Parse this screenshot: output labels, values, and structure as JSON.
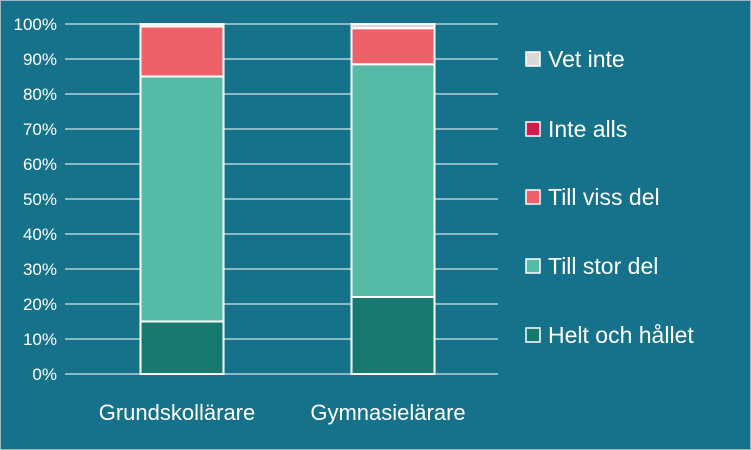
{
  "chart_data": {
    "type": "bar",
    "stacked": true,
    "percent": true,
    "categories": [
      "Grundskollärare",
      "Gymnasielärare"
    ],
    "series": [
      {
        "name": "Helt och hållet",
        "values": [
          15,
          22
        ],
        "color": "#177870"
      },
      {
        "name": "Till stor del",
        "values": [
          70,
          66.5
        ],
        "color": "#55bba7"
      },
      {
        "name": "Till viss del",
        "values": [
          14.3,
          10.3
        ],
        "color": "#ef6168"
      },
      {
        "name": "Inte alls",
        "values": [
          0,
          0
        ],
        "color": "#d21b4b"
      },
      {
        "name": "Vet inte",
        "values": [
          0.7,
          1.2
        ],
        "color": "#d9d9d9"
      }
    ],
    "yticks": [
      "0%",
      "10%",
      "20%",
      "30%",
      "40%",
      "50%",
      "60%",
      "70%",
      "80%",
      "90%",
      "100%"
    ],
    "ylim": [
      0,
      100
    ],
    "grid": true,
    "legend": "right",
    "colors": {
      "background": "#16728a",
      "gridline": "#ffffff",
      "text": "#ffffff",
      "bar_outline": "#ffffff"
    }
  }
}
